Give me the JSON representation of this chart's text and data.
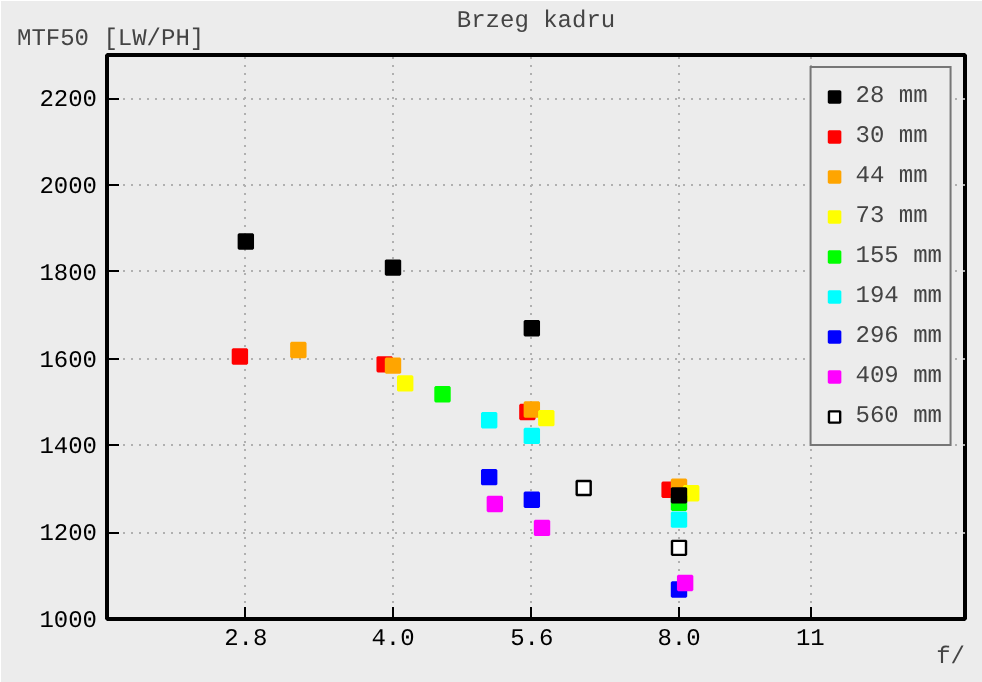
{
  "chart_data": {
    "type": "scatter",
    "title": "Brzeg kadru",
    "xlabel": "f/",
    "ylabel": "MTF50 [LW/PH]",
    "log": "x",
    "xlim": [
      2,
      16
    ],
    "ylim": [
      1000,
      2300
    ],
    "xticks": [
      2.8,
      {
        "value": 4,
        "label": "4.0"
      },
      5.6,
      {
        "value": 8,
        "label": "8.0"
      },
      11
    ],
    "yticks": [
      1000,
      1200,
      1400,
      1600,
      1800,
      2000,
      2200
    ],
    "grid": true,
    "legend": "top right",
    "marker": "square",
    "series": [
      {
        "name": "28 mm",
        "color": "#000000",
        "x": [
          2.8,
          4.0,
          5.6,
          8.0
        ],
        "values": [
          1870,
          1810,
          1670,
          1285
        ]
      },
      {
        "name": "30 mm",
        "color": "#ff0000",
        "x": [
          2.76,
          3.92,
          5.54,
          7.82
        ],
        "values": [
          1605,
          1587,
          1477,
          1298
        ]
      },
      {
        "name": "44 mm",
        "color": "#ffa500",
        "x": [
          3.18,
          4.0,
          5.6,
          8.0
        ],
        "values": [
          1620,
          1584,
          1483,
          1305
        ]
      },
      {
        "name": "73 mm",
        "color": "#ffff00",
        "x": [
          4.12,
          5.8,
          8.24
        ],
        "values": [
          1543,
          1463,
          1290
        ]
      },
      {
        "name": "155 mm",
        "color": "#00ff00",
        "x": [
          4.51,
          8.0
        ],
        "values": [
          1518,
          1268
        ]
      },
      {
        "name": "194 mm",
        "color": "#00ffff",
        "x": [
          5.05,
          5.6,
          8.0
        ],
        "values": [
          1458,
          1422,
          1229
        ]
      },
      {
        "name": "296 mm",
        "color": "#0000ff",
        "x": [
          5.05,
          5.6,
          8.0
        ],
        "values": [
          1327,
          1275,
          1068
        ]
      },
      {
        "name": "409 mm",
        "color": "#ff00ff",
        "x": [
          5.12,
          5.74,
          8.12
        ],
        "values": [
          1265,
          1210,
          1083
        ]
      },
      {
        "name": "560 mm",
        "color": "#ffffff",
        "x": [
          6.35,
          8.0
        ],
        "values": [
          1302,
          1164
        ]
      }
    ]
  }
}
